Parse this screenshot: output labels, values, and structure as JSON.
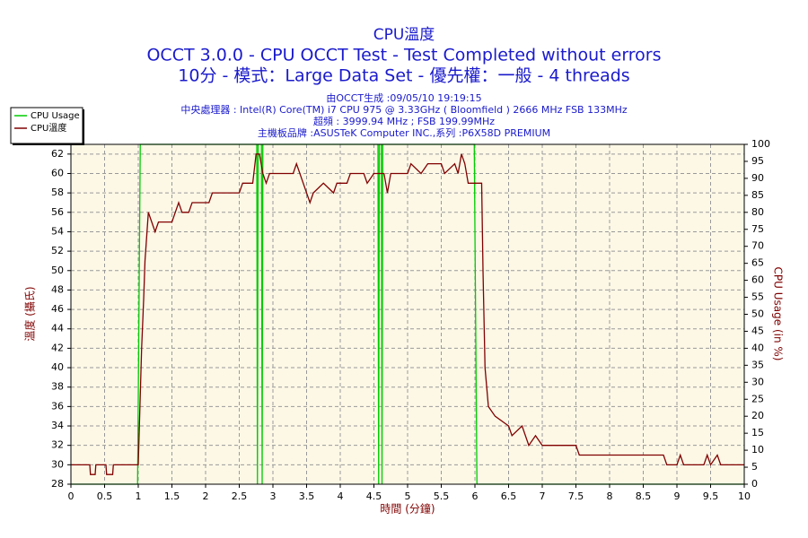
{
  "chart_data": {
    "type": "line",
    "title": "CPU溫度",
    "subtitle": "OCCT 3.0.0 - CPU OCCT Test - Test Completed without errors",
    "subtitle2": "10分 - 模式：Large Data Set - 優先權：一般 - 4 threads",
    "info": [
      "由OCCT生成 :09/05/10 19:19:15",
      "中央處理器 : Intel(R) Core(TM) i7 CPU 975 @ 3.33GHz ( Bloomfield ) 2666 MHz FSB 133MHz",
      "超頻 : 3999.94 MHz ; FSB 199.99MHz",
      "主機板品牌 :ASUSTeK Computer INC.,系列 :P6X58D PREMIUM"
    ],
    "xlabel": "時間 (分鐘)",
    "ylabel": "溫度 (攝氏)",
    "y2label": "CPU Usage (in %)",
    "xlim": [
      0,
      10
    ],
    "xticks": [
      0,
      0.5,
      1,
      1.5,
      2,
      2.5,
      3,
      3.5,
      4,
      4.5,
      5,
      5.5,
      6,
      6.5,
      7,
      7.5,
      8,
      8.5,
      9,
      9.5,
      10
    ],
    "ylim": [
      28,
      63
    ],
    "yticks": [
      28,
      30,
      32,
      34,
      36,
      38,
      40,
      42,
      44,
      46,
      48,
      50,
      52,
      54,
      56,
      58,
      60,
      62
    ],
    "y2lim": [
      0,
      100
    ],
    "y2ticks": [
      0,
      5,
      10,
      15,
      20,
      25,
      30,
      35,
      40,
      45,
      50,
      55,
      60,
      65,
      70,
      75,
      80,
      85,
      90,
      95,
      100
    ],
    "grid": true,
    "legend": "top-left",
    "series": [
      {
        "name": "CPU Usage",
        "color": "#00cc00",
        "axis": "y2",
        "x": [
          0,
          0.99,
          1.03,
          2.76,
          2.77,
          2.78,
          2.83,
          2.84,
          2.85,
          4.56,
          4.57,
          4.58,
          4.61,
          4.62,
          4.63,
          5.99,
          6.03,
          10
        ],
        "values": [
          0,
          0,
          100,
          100,
          0,
          100,
          100,
          0,
          100,
          100,
          0,
          100,
          100,
          0,
          100,
          100,
          0,
          0
        ]
      },
      {
        "name": "CPU溫度",
        "color": "#800000",
        "x": [
          0,
          0.28,
          0.29,
          0.36,
          0.37,
          0.52,
          0.53,
          0.62,
          0.63,
          1.0,
          1.05,
          1.08,
          1.1,
          1.12,
          1.15,
          1.2,
          1.25,
          1.3,
          1.5,
          1.55,
          1.6,
          1.65,
          1.75,
          1.8,
          2.05,
          2.1,
          2.5,
          2.55,
          2.7,
          2.75,
          2.8,
          2.85,
          2.9,
          2.95,
          3.3,
          3.35,
          3.45,
          3.55,
          3.6,
          3.75,
          3.9,
          3.95,
          4.1,
          4.15,
          4.35,
          4.4,
          4.5,
          4.65,
          4.7,
          4.75,
          5.0,
          5.05,
          5.2,
          5.3,
          5.5,
          5.55,
          5.7,
          5.75,
          5.8,
          5.85,
          5.9,
          6.1,
          6.12,
          6.15,
          6.2,
          6.3,
          6.5,
          6.55,
          6.7,
          6.8,
          6.9,
          7.0,
          7.5,
          7.55,
          8.8,
          8.85,
          9.0,
          9.05,
          9.1,
          9.4,
          9.45,
          9.5,
          9.6,
          9.65,
          10
        ],
        "values": [
          30,
          30,
          29,
          29,
          30,
          30,
          29,
          29,
          30,
          30,
          42,
          47,
          51,
          53,
          56,
          55,
          54,
          55,
          55,
          56,
          57,
          56,
          56,
          57,
          57,
          58,
          58,
          59,
          59,
          62,
          62,
          60,
          59,
          60,
          60,
          61,
          59,
          57,
          58,
          59,
          58,
          59,
          59,
          60,
          60,
          59,
          60,
          60,
          58,
          60,
          60,
          61,
          60,
          61,
          61,
          60,
          61,
          60,
          62,
          61,
          59,
          59,
          50,
          40,
          36,
          35,
          34,
          33,
          34,
          32,
          33,
          32,
          32,
          31,
          31,
          30,
          30,
          31,
          30,
          30,
          31,
          30,
          31,
          30,
          30
        ]
      }
    ]
  }
}
